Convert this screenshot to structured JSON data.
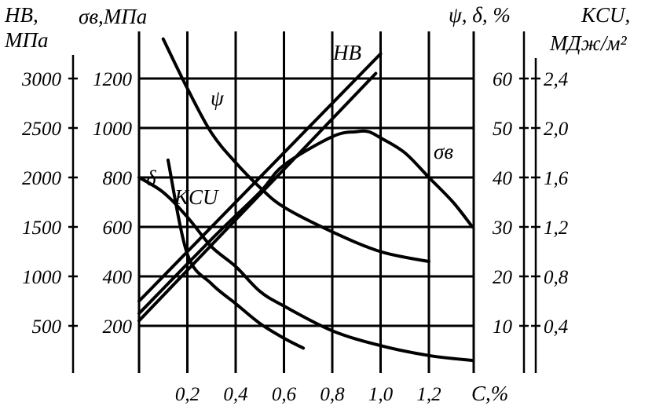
{
  "chart_data": {
    "type": "line",
    "x_axis": {
      "label": "C,%",
      "ticks": [
        "0,2",
        "0,4",
        "0,6",
        "0,8",
        "1,0",
        "1,2"
      ],
      "range": [
        0,
        1.4
      ]
    },
    "axes": {
      "hb": {
        "title1": "HB,",
        "title2": "МПа",
        "ticks": [
          "3000",
          "2500",
          "2000",
          "1500",
          "1000",
          "500"
        ],
        "range": [
          0,
          3500
        ]
      },
      "sigma": {
        "title": "σв,МПа",
        "ticks": [
          "1200",
          "1000",
          "800",
          "600",
          "400",
          "200"
        ],
        "range": [
          0,
          1400
        ]
      },
      "psi_delta": {
        "title": "ψ, δ, %",
        "ticks": [
          "60",
          "50",
          "40",
          "30",
          "20",
          "10"
        ],
        "range": [
          0,
          70
        ]
      },
      "kcu": {
        "title1": "KCU,",
        "title2": "МДж/м²",
        "ticks": [
          "2,4",
          "2,0",
          "1,6",
          "1,2",
          "0,8",
          "0,4"
        ],
        "range": [
          0,
          2.8
        ]
      }
    },
    "grid": true,
    "series": [
      {
        "name": "HB",
        "axis": "hb",
        "x": [
          0.0,
          1.0
        ],
        "y": [
          750,
          3250
        ]
      },
      {
        "name": "σв",
        "axis": "sigma",
        "x": [
          0.0,
          0.3,
          0.5,
          0.6,
          0.8,
          0.9,
          0.95,
          1.0,
          1.1,
          1.2,
          1.3,
          1.38
        ],
        "y": [
          250,
          550,
          740,
          850,
          965,
          985,
          985,
          960,
          900,
          800,
          700,
          600
        ]
      },
      {
        "name": "ψ",
        "axis": "psi_delta",
        "x": [
          0.1,
          0.2,
          0.3,
          0.4,
          0.5,
          0.6,
          0.8,
          1.0,
          1.2
        ],
        "y": [
          68,
          58,
          49,
          43,
          38,
          34,
          29,
          25,
          23
        ]
      },
      {
        "name": "δ",
        "axis": "psi_delta",
        "x": [
          0.0,
          0.1,
          0.2,
          0.3,
          0.4,
          0.5,
          0.6,
          0.8,
          1.0,
          1.2,
          1.38
        ],
        "y": [
          40,
          37,
          32,
          26,
          22,
          17,
          14,
          9,
          6,
          4,
          3
        ]
      },
      {
        "name": "KCU",
        "axis": "kcu",
        "x": [
          0.12,
          0.2,
          0.3,
          0.4,
          0.5,
          0.6,
          0.68
        ],
        "y": [
          1.74,
          0.98,
          0.74,
          0.58,
          0.42,
          0.3,
          0.22
        ]
      }
    ],
    "curve_labels": {
      "HB": "HB",
      "sigma": "σв",
      "psi": "ψ",
      "delta": "δ",
      "kcu": "KCU"
    }
  }
}
